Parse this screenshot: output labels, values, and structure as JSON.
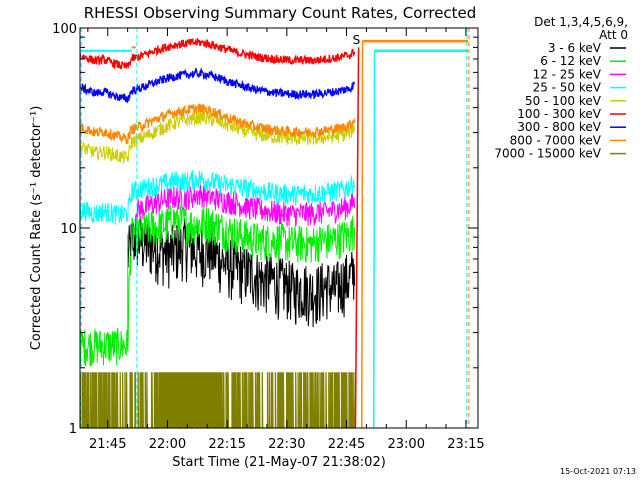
{
  "chart_data": {
    "type": "line",
    "title": "RHESSI Observing Summary Count Rates, Corrected",
    "xlabel": "Start Time (21-May-07 21:38:02)",
    "ylabel": "Corrected Count Rate (s⁻¹ detector⁻¹)",
    "yscale": "log",
    "ylim": [
      1,
      100
    ],
    "xlim_minutes": [
      0,
      100
    ],
    "x_tick_labels": [
      {
        "label": "21:45",
        "minute": 6.97
      },
      {
        "label": "22:00",
        "minute": 21.97
      },
      {
        "label": "22:15",
        "minute": 36.97
      },
      {
        "label": "22:30",
        "minute": 51.97
      },
      {
        "label": "22:45",
        "minute": 66.97
      },
      {
        "label": "23:00",
        "minute": 81.97
      },
      {
        "label": "23:15",
        "minute": 96.97
      }
    ],
    "y_tick_labels": [
      {
        "label": "100",
        "value": 100
      },
      {
        "label": "10",
        "value": 10
      },
      {
        "label": "1",
        "value": 1
      }
    ],
    "legend_header": [
      "Det 1,3,4,5,6,9,",
      "Att 0"
    ],
    "legend_position": "top-right",
    "series": [
      {
        "name": "3 - 6 keV",
        "color": "#000000",
        "x": [
          12,
          13,
          14,
          16,
          18,
          20,
          22,
          24,
          26,
          28,
          30,
          32,
          34,
          36,
          38,
          40,
          42,
          44,
          46,
          48,
          50,
          52,
          54,
          56,
          58,
          60,
          62,
          64,
          66,
          68,
          69
        ],
        "y": [
          7.2,
          8.5,
          9.1,
          8.4,
          8.2,
          7.9,
          7.5,
          7.8,
          8.3,
          8.0,
          7.6,
          7.9,
          7.4,
          6.8,
          6.5,
          6.3,
          6.1,
          5.8,
          5.5,
          5.6,
          5.3,
          5.2,
          4.9,
          5.1,
          4.8,
          4.9,
          5.2,
          4.9,
          5.4,
          5.7,
          6.2
        ]
      },
      {
        "name": "6 - 12 keV",
        "color": "#00ee00",
        "x": [
          0,
          12,
          13,
          14,
          16,
          18,
          20,
          22,
          24,
          26,
          28,
          30,
          32,
          34,
          36,
          38,
          40,
          42,
          44,
          46,
          48,
          50,
          52,
          54,
          56,
          58,
          60,
          62,
          64,
          66,
          68,
          69
        ],
        "y": [
          2.6,
          2.6,
          9.3,
          9.4,
          9.6,
          10.2,
          10.1,
          10.6,
          11.1,
          10.7,
          10.4,
          10.5,
          10.8,
          10.3,
          9.9,
          9.6,
          9.3,
          9.0,
          8.8,
          8.7,
          8.6,
          8.8,
          8.5,
          8.4,
          8.5,
          8.3,
          8.6,
          8.7,
          8.8,
          9.0,
          9.4,
          10.0
        ]
      },
      {
        "name": "12 - 25 keV",
        "color": "#ff00ff",
        "x": [
          14,
          16,
          18,
          20,
          22,
          24,
          26,
          28,
          30,
          32,
          34,
          36,
          38,
          40,
          42,
          44,
          46,
          48,
          50,
          52,
          54,
          56,
          58,
          60,
          62,
          64,
          66,
          68,
          69
        ],
        "y": [
          12.3,
          12.6,
          13.1,
          13.6,
          14.0,
          14.3,
          14.1,
          14.4,
          14.8,
          14.5,
          14.1,
          13.8,
          13.5,
          13.2,
          12.8,
          12.5,
          12.3,
          12.1,
          11.9,
          11.8,
          11.7,
          11.9,
          11.8,
          12.0,
          12.1,
          12.3,
          12.6,
          13.0,
          13.7
        ]
      },
      {
        "name": "25 - 50 keV",
        "color": "#00ffff",
        "x": [
          0,
          2,
          4,
          6,
          8,
          10,
          12,
          13,
          14,
          16,
          18,
          20,
          22,
          24,
          26,
          28,
          30,
          32,
          34,
          36,
          38,
          40,
          42,
          44,
          46,
          48,
          50,
          52,
          54,
          56,
          58,
          60,
          62,
          64,
          66,
          68,
          69
        ],
        "y": [
          12.4,
          12.1,
          11.8,
          12.2,
          11.9,
          11.6,
          11.9,
          15.2,
          15.4,
          15.8,
          16.2,
          16.5,
          16.9,
          17.2,
          17.0,
          17.4,
          17.7,
          17.3,
          16.9,
          16.6,
          16.3,
          16.1,
          15.8,
          15.5,
          15.3,
          15.1,
          14.9,
          14.8,
          14.7,
          14.9,
          14.8,
          15.0,
          15.1,
          15.3,
          15.6,
          16.2,
          17.3
        ]
      },
      {
        "name": "50 - 100 keV",
        "color": "#cccc00",
        "x": [
          0,
          2,
          4,
          6,
          8,
          10,
          12,
          13,
          14,
          16,
          18,
          20,
          22,
          24,
          26,
          28,
          30,
          32,
          34,
          36,
          38,
          40,
          42,
          44,
          46,
          48,
          50,
          52,
          54,
          56,
          58,
          60,
          62,
          64,
          66,
          68,
          69
        ],
        "y": [
          25.5,
          24.6,
          23.7,
          24.1,
          23.5,
          22.8,
          22.3,
          27.1,
          27.4,
          28.5,
          29.8,
          31.2,
          32.4,
          33.6,
          34.5,
          35.1,
          35.8,
          35.3,
          34.6,
          33.4,
          32.2,
          31.3,
          30.4,
          29.6,
          29.1,
          28.7,
          28.4,
          28.2,
          28.0,
          28.1,
          27.9,
          28.2,
          28.5,
          28.8,
          29.2,
          30.1,
          32.5
        ]
      },
      {
        "name": "100 - 300 keV",
        "color": "#ff0000",
        "x": [
          0,
          2,
          4,
          6,
          8,
          10,
          12,
          13,
          14,
          16,
          18,
          20,
          22,
          24,
          26,
          28,
          30,
          32,
          34,
          36,
          38,
          40,
          42,
          44,
          46,
          48,
          50,
          52,
          54,
          56,
          58,
          60,
          62,
          64,
          66,
          68,
          69
        ],
        "y": [
          73.0,
          70.5,
          68.4,
          69.6,
          67.1,
          65.2,
          64.0,
          70.3,
          71.1,
          73.2,
          75.8,
          78.4,
          80.7,
          82.6,
          83.4,
          84.3,
          84.8,
          83.6,
          81.5,
          79.2,
          77.0,
          75.1,
          73.6,
          72.0,
          71.1,
          70.3,
          69.6,
          69.2,
          68.8,
          69.1,
          68.6,
          69.3,
          70.1,
          70.8,
          71.8,
          73.4,
          77.0
        ]
      },
      {
        "name": "300 - 800 keV",
        "color": "#0000ff",
        "x": [
          0,
          2,
          4,
          6,
          8,
          10,
          12,
          13,
          14,
          16,
          18,
          20,
          22,
          24,
          26,
          28,
          30,
          32,
          34,
          36,
          38,
          40,
          42,
          44,
          46,
          48,
          50,
          52,
          54,
          56,
          58,
          60,
          62,
          64,
          66,
          68,
          69
        ],
        "y": [
          50.5,
          48.8,
          47.2,
          48.1,
          46.3,
          45.0,
          44.1,
          48.6,
          49.2,
          50.8,
          52.6,
          54.4,
          56.1,
          57.4,
          58.2,
          58.9,
          59.3,
          58.4,
          56.9,
          55.1,
          53.4,
          51.9,
          50.6,
          49.3,
          48.5,
          47.8,
          47.2,
          46.9,
          46.6,
          46.8,
          46.5,
          46.9,
          47.5,
          48.0,
          48.8,
          50.0,
          52.8
        ]
      },
      {
        "name": "800 - 7000 keV",
        "color": "#ff8800",
        "x": [
          0,
          2,
          4,
          6,
          8,
          10,
          12,
          13,
          14,
          16,
          18,
          20,
          22,
          24,
          26,
          28,
          30,
          32,
          34,
          36,
          38,
          40,
          42,
          44,
          46,
          48,
          50,
          52,
          54,
          56,
          58,
          60,
          62,
          64,
          66,
          68,
          69
        ],
        "y": [
          32.0,
          31.0,
          29.9,
          30.5,
          29.4,
          28.5,
          27.9,
          31.2,
          31.6,
          32.8,
          34.2,
          35.6,
          36.8,
          37.9,
          38.6,
          39.2,
          39.6,
          38.9,
          37.8,
          36.4,
          35.1,
          34.0,
          33.0,
          32.1,
          31.6,
          31.1,
          30.7,
          30.4,
          30.2,
          30.3,
          30.1,
          30.4,
          30.8,
          31.2,
          31.8,
          33.0,
          35.2
        ]
      },
      {
        "name": "7000 - 15000 keV",
        "color": "#808000",
        "x": [
          0,
          12,
          13,
          14,
          16,
          18,
          20,
          22,
          24,
          26,
          28,
          30,
          32,
          34,
          36,
          38,
          40,
          42,
          44,
          46,
          48,
          50,
          52,
          54,
          56,
          58,
          60,
          62,
          64,
          66,
          68,
          69
        ],
        "y": [
          1.9,
          1.9,
          1.9,
          1.9,
          1.9,
          1.9,
          1.9,
          1.9,
          1.9,
          1.9,
          1.9,
          1.9,
          1.9,
          1.9,
          1.9,
          1.9,
          1.9,
          1.9,
          1.9,
          1.9,
          1.9,
          1.9,
          1.9,
          1.9,
          1.9,
          1.9,
          1.9,
          1.9,
          1.9,
          1.9,
          1.9,
          1.9
        ]
      }
    ],
    "after_gap_lines": [
      {
        "name": "100 - 300 keV",
        "color": "#ff0000",
        "x_start": 69.2,
        "y_start": 1.0,
        "x_end": 70.0,
        "y_end": 80.0
      },
      {
        "name": "800 - 7000 keV",
        "color": "#ff8800",
        "x_start": 70.8,
        "y_start": 1.0,
        "x_end": 71.0,
        "y_end": 86.0,
        "y_flat": 86.0,
        "x_flat_end": 97.5
      },
      {
        "name": "25 - 50 keV",
        "color": "#00ffff",
        "x_start": 73.8,
        "y_start": 1.0,
        "x_end": 74.0,
        "y_end": 77.0,
        "y_flat": 77.0,
        "x_flat_end": 97.5
      }
    ],
    "pre_gap_level": {
      "name": "25 - 50 keV",
      "color": "#00ffff",
      "x_start": 0,
      "x_end": 13,
      "y": 77.0
    },
    "pre_gap_level_2": {
      "name": "800 - 7000 keV",
      "color": "#ff8800",
      "x_start": 13,
      "x_end": 14,
      "y": 80.0
    },
    "markers": [
      {
        "type": "saa_dashed",
        "color": "#00ffff",
        "x": 0.3
      },
      {
        "type": "saa_dashed",
        "color": "#00ffff",
        "x": 14.3
      },
      {
        "type": "saa_dashed",
        "color": "#00ffff",
        "x": 97.2
      },
      {
        "type": "night_dashed",
        "color": "#ff8800",
        "x": 97.7
      }
    ],
    "flag_label": {
      "text": "S",
      "color": "#ff8800",
      "minute": 69.5
    }
  },
  "footer": {
    "timestamp": "15-Oct-2021 07:13"
  }
}
